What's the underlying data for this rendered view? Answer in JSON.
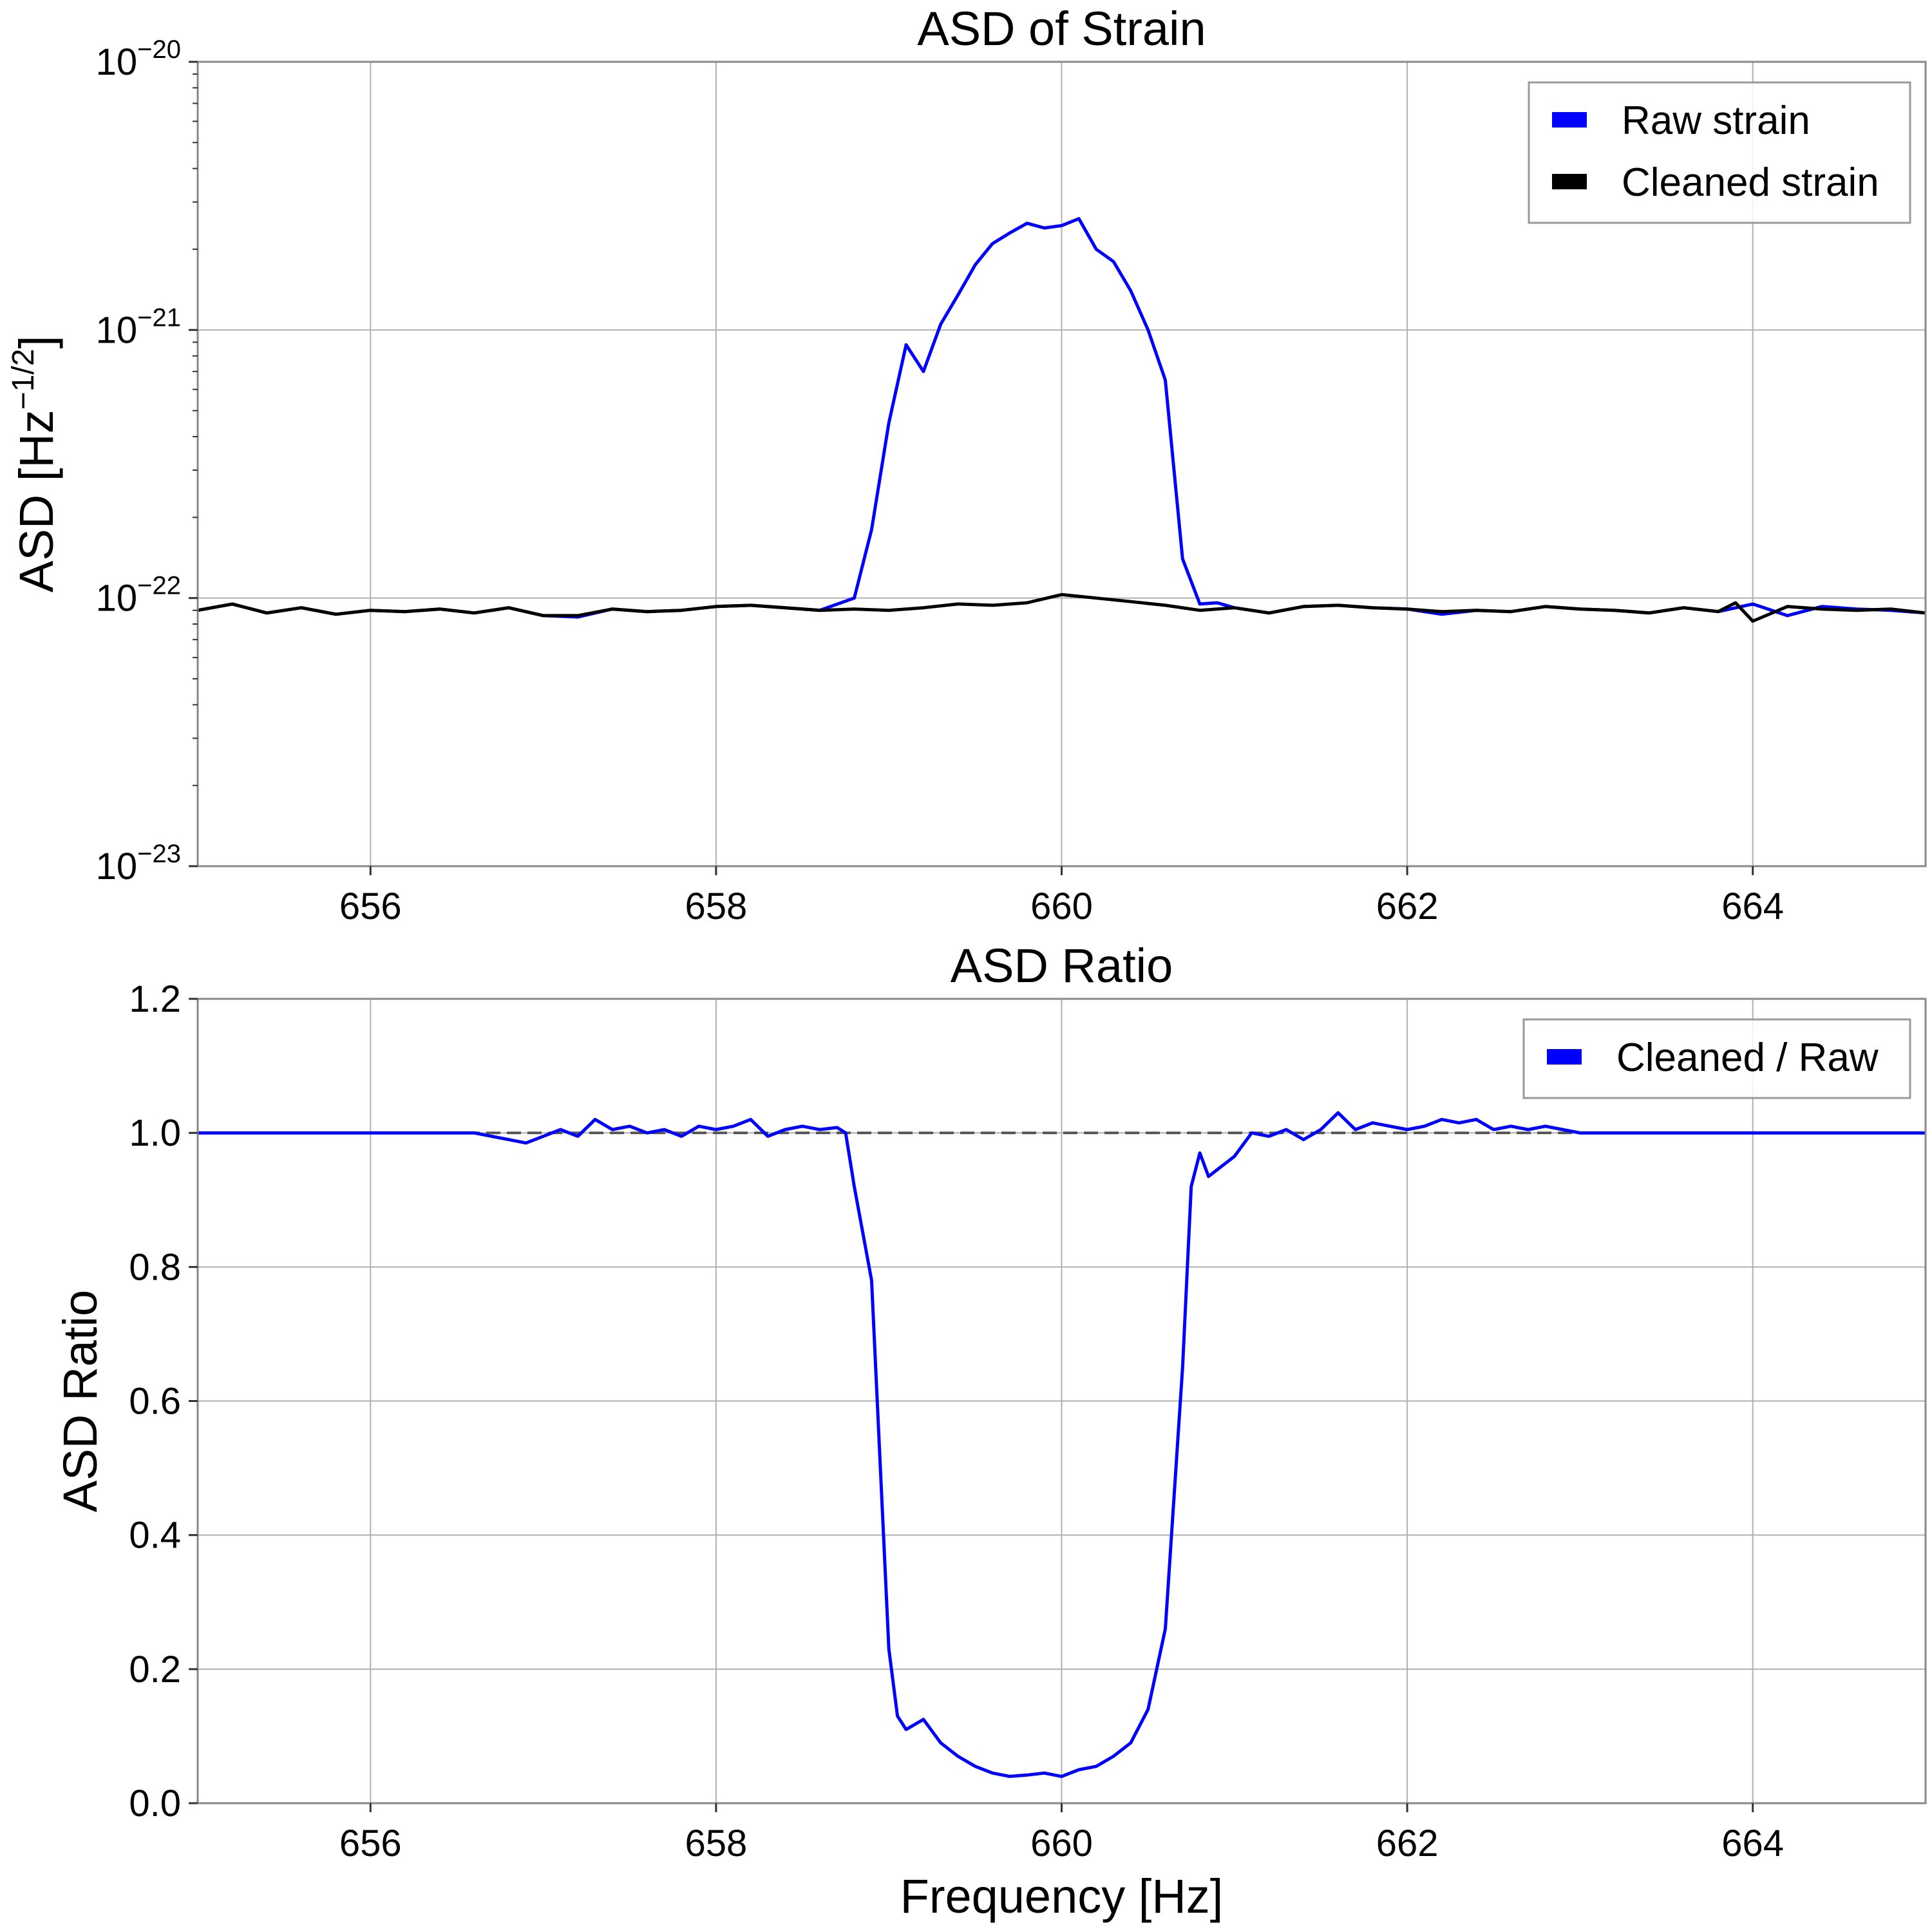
{
  "chart_data": [
    {
      "type": "line",
      "title": "ASD of Strain",
      "xlabel": "",
      "ylabel": "ASD [Hz⁻¹ᐟ²]",
      "ylabel_base": "ASD [Hz",
      "ylabel_sup": "−1/2",
      "ylabel_end": "]",
      "yscale": "log",
      "xlim": [
        655,
        665
      ],
      "ylim": [
        1e-23,
        1e-20
      ],
      "xticks": [
        656,
        658,
        660,
        662,
        664
      ],
      "xtick_labels": [
        "656",
        "658",
        "660",
        "662",
        "664"
      ],
      "yticks": [
        1e-23,
        1e-22,
        1e-21,
        1e-20
      ],
      "ytick_labels": [
        {
          "base": "10",
          "exp": "−23"
        },
        {
          "base": "10",
          "exp": "−22"
        },
        {
          "base": "10",
          "exp": "−21"
        },
        {
          "base": "10",
          "exp": "−20"
        }
      ],
      "grid": true,
      "legend_position": "upper right",
      "series": [
        {
          "name": "Raw strain",
          "color": "#0000ff",
          "x": [
            655.0,
            655.2,
            655.4,
            655.6,
            655.8,
            656.0,
            656.2,
            656.4,
            656.6,
            656.8,
            657.0,
            657.2,
            657.4,
            657.6,
            657.8,
            658.0,
            658.2,
            658.4,
            658.6,
            658.8,
            658.9,
            659.0,
            659.1,
            659.2,
            659.3,
            659.4,
            659.5,
            659.6,
            659.7,
            659.8,
            659.9,
            660.0,
            660.1,
            660.2,
            660.3,
            660.4,
            660.5,
            660.6,
            660.7,
            660.8,
            660.9,
            661.0,
            661.2,
            661.4,
            661.6,
            661.8,
            662.0,
            662.2,
            662.4,
            662.6,
            662.8,
            663.0,
            663.2,
            663.4,
            663.6,
            663.8,
            664.0,
            664.2,
            664.4,
            664.6,
            664.8,
            665.0
          ],
          "y": [
            9e-23,
            9.5e-23,
            8.8e-23,
            9.2e-23,
            8.7e-23,
            9e-23,
            8.9e-23,
            9.1e-23,
            8.8e-23,
            9.2e-23,
            8.6e-23,
            8.5e-23,
            9.1e-23,
            8.9e-23,
            9e-23,
            9.3e-23,
            9.4e-23,
            9.2e-23,
            9e-23,
            1e-22,
            1.8e-22,
            4.5e-22,
            8.8e-22,
            7e-22,
            1.05e-21,
            1.35e-21,
            1.75e-21,
            2.1e-21,
            2.3e-21,
            2.5e-21,
            2.4e-21,
            2.45e-21,
            2.6e-21,
            2e-21,
            1.8e-21,
            1.4e-21,
            1e-21,
            6.5e-22,
            1.4e-22,
            9.5e-23,
            9.6e-23,
            9.2e-23,
            8.8e-23,
            9.3e-23,
            9.4e-23,
            9.2e-23,
            9.1e-23,
            8.7e-23,
            9e-23,
            8.9e-23,
            9.3e-23,
            9.1e-23,
            9e-23,
            8.8e-23,
            9.2e-23,
            8.9e-23,
            9.5e-23,
            8.6e-23,
            9.3e-23,
            9.1e-23,
            9e-23,
            8.8e-23
          ]
        },
        {
          "name": "Cleaned strain",
          "color": "#000000",
          "x": [
            655.0,
            655.2,
            655.4,
            655.6,
            655.8,
            656.0,
            656.2,
            656.4,
            656.6,
            656.8,
            657.0,
            657.2,
            657.4,
            657.6,
            657.8,
            658.0,
            658.2,
            658.4,
            658.6,
            658.8,
            659.0,
            659.2,
            659.4,
            659.6,
            659.8,
            660.0,
            660.2,
            660.4,
            660.6,
            660.8,
            661.0,
            661.2,
            661.4,
            661.6,
            661.8,
            662.0,
            662.2,
            662.4,
            662.6,
            662.8,
            663.0,
            663.2,
            663.4,
            663.6,
            663.8,
            663.9,
            664.0,
            664.2,
            664.4,
            664.6,
            664.8,
            665.0
          ],
          "y": [
            9e-23,
            9.5e-23,
            8.8e-23,
            9.2e-23,
            8.7e-23,
            9e-23,
            8.9e-23,
            9.1e-23,
            8.8e-23,
            9.2e-23,
            8.6e-23,
            8.6e-23,
            9.1e-23,
            8.9e-23,
            9e-23,
            9.3e-23,
            9.4e-23,
            9.2e-23,
            9e-23,
            9.1e-23,
            9e-23,
            9.2e-23,
            9.5e-23,
            9.4e-23,
            9.6e-23,
            1.03e-22,
            1e-22,
            9.7e-23,
            9.4e-23,
            9e-23,
            9.2e-23,
            8.8e-23,
            9.3e-23,
            9.4e-23,
            9.2e-23,
            9.1e-23,
            8.9e-23,
            9e-23,
            8.9e-23,
            9.3e-23,
            9.1e-23,
            9e-23,
            8.8e-23,
            9.2e-23,
            8.9e-23,
            9.6e-23,
            8.2e-23,
            9.3e-23,
            9.1e-23,
            9e-23,
            9.1e-23,
            8.8e-23
          ]
        }
      ]
    },
    {
      "type": "line",
      "title": "ASD Ratio",
      "xlabel": "Frequency [Hz]",
      "ylabel": "ASD Ratio",
      "yscale": "linear",
      "xlim": [
        655,
        665
      ],
      "ylim": [
        0.0,
        1.2
      ],
      "xticks": [
        656,
        658,
        660,
        662,
        664
      ],
      "xtick_labels": [
        "656",
        "658",
        "660",
        "662",
        "664"
      ],
      "yticks": [
        0.0,
        0.2,
        0.4,
        0.6,
        0.8,
        1.0,
        1.2
      ],
      "ytick_labels": [
        "0.0",
        "0.2",
        "0.4",
        "0.6",
        "0.8",
        "1.0",
        "1.2"
      ],
      "grid": true,
      "legend_position": "upper right",
      "reference_line": {
        "y": 1.0,
        "style": "dashed",
        "color": "#555555"
      },
      "series": [
        {
          "name": "Cleaned / Raw",
          "color": "#0000ff",
          "x": [
            655.0,
            656.6,
            656.8,
            656.9,
            657.0,
            657.1,
            657.2,
            657.3,
            657.4,
            657.5,
            657.6,
            657.7,
            657.8,
            657.9,
            658.0,
            658.1,
            658.2,
            658.3,
            658.4,
            658.5,
            658.6,
            658.7,
            658.75,
            658.8,
            658.9,
            659.0,
            659.05,
            659.1,
            659.2,
            659.3,
            659.4,
            659.5,
            659.6,
            659.7,
            659.8,
            659.9,
            660.0,
            660.1,
            660.2,
            660.3,
            660.4,
            660.5,
            660.6,
            660.7,
            660.75,
            660.8,
            660.85,
            660.9,
            661.0,
            661.1,
            661.2,
            661.3,
            661.4,
            661.5,
            661.6,
            661.7,
            661.8,
            661.9,
            662.0,
            662.1,
            662.2,
            662.3,
            662.4,
            662.5,
            662.6,
            662.7,
            662.8,
            662.9,
            663.0,
            665.0
          ],
          "y": [
            1.0,
            1.0,
            0.99,
            0.985,
            0.995,
            1.005,
            0.995,
            1.02,
            1.005,
            1.01,
            1.0,
            1.005,
            0.995,
            1.01,
            1.005,
            1.01,
            1.02,
            0.995,
            1.005,
            1.01,
            1.005,
            1.008,
            1.0,
            0.92,
            0.78,
            0.23,
            0.13,
            0.11,
            0.125,
            0.09,
            0.07,
            0.055,
            0.045,
            0.04,
            0.042,
            0.045,
            0.04,
            0.05,
            0.055,
            0.07,
            0.09,
            0.14,
            0.26,
            0.65,
            0.92,
            0.97,
            0.935,
            0.945,
            0.965,
            1.0,
            0.995,
            1.005,
            0.99,
            1.005,
            1.03,
            1.005,
            1.015,
            1.01,
            1.005,
            1.01,
            1.02,
            1.015,
            1.02,
            1.005,
            1.01,
            1.005,
            1.01,
            1.005,
            1.0,
            1.0
          ]
        }
      ]
    }
  ]
}
